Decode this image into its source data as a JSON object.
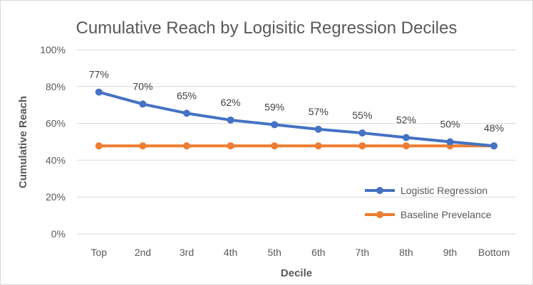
{
  "chart_data": {
    "type": "line",
    "title": "Cumulative Reach by Logisitic Regression Deciles",
    "xlabel": "Decile",
    "ylabel": "Cumulative Reach",
    "categories": [
      "Top",
      "2nd",
      "3rd",
      "4th",
      "5th",
      "6th",
      "7th",
      "8th",
      "9th",
      "Bottom"
    ],
    "ylim": [
      0,
      100
    ],
    "yticks": [
      "0%",
      "20%",
      "40%",
      "60%",
      "80%",
      "100%"
    ],
    "grid": true,
    "legend_position": "bottom-right",
    "series": [
      {
        "name": "Logistic Regression",
        "values": [
          77,
          70.5,
          65.5,
          61.8,
          59.3,
          56.8,
          54.8,
          52.3,
          50.0,
          47.8
        ],
        "labels": [
          "77%",
          "70%",
          "65%",
          "62%",
          "59%",
          "57%",
          "55%",
          "52%",
          "50%",
          "48%"
        ],
        "color": "#4472c4"
      },
      {
        "name": "Baseline Prevelance",
        "values": [
          47.8,
          47.8,
          47.8,
          47.8,
          47.8,
          47.8,
          47.8,
          47.8,
          47.8,
          47.8
        ],
        "color": "#ed7d31"
      }
    ]
  }
}
